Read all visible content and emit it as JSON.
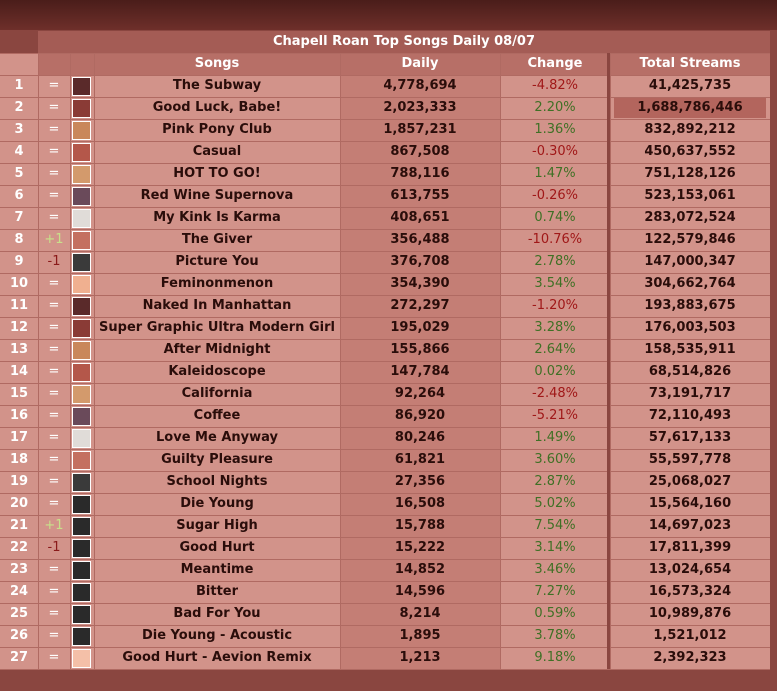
{
  "table": {
    "title": "Chapell Roan Top Songs Daily 08/07",
    "header": [
      "Songs",
      "Daily",
      "Change",
      "Total Streams"
    ],
    "rows": [
      [
        "1",
        "=",
        "The Subway",
        "4,778,694",
        "-4.82%",
        "41,425,735"
      ],
      [
        "2",
        "=",
        "Good Luck, Babe!",
        "2,023,333",
        "2.20%",
        "1,688,786,446"
      ],
      [
        "3",
        "=",
        "Pink Pony Club",
        "1,857,231",
        "1.36%",
        "832,892,212"
      ],
      [
        "4",
        "=",
        "Casual",
        "867,508",
        "-0.30%",
        "450,637,552"
      ],
      [
        "5",
        "=",
        "HOT TO GO!",
        "788,116",
        "1.47%",
        "751,128,126"
      ],
      [
        "6",
        "=",
        "Red Wine Supernova",
        "613,755",
        "-0.26%",
        "523,153,061"
      ],
      [
        "7",
        "=",
        "My Kink Is Karma",
        "408,651",
        "0.74%",
        "283,072,524"
      ],
      [
        "8",
        "+1",
        "The Giver",
        "356,488",
        "-10.76%",
        "122,579,846"
      ],
      [
        "9",
        "-1",
        "Picture You",
        "376,708",
        "2.78%",
        "147,000,347"
      ],
      [
        "10",
        "=",
        "Feminonmenon",
        "354,390",
        "3.54%",
        "304,662,764"
      ],
      [
        "11",
        "=",
        "Naked In Manhattan",
        "272,297",
        "-1.20%",
        "193,883,675"
      ],
      [
        "12",
        "=",
        "Super Graphic Ultra Modern Girl",
        "195,029",
        "3.28%",
        "176,003,503"
      ],
      [
        "13",
        "=",
        "After Midnight",
        "155,866",
        "2.64%",
        "158,535,911"
      ],
      [
        "14",
        "=",
        "Kaleidoscope",
        "147,784",
        "0.02%",
        "68,514,826"
      ],
      [
        "15",
        "=",
        "California",
        "92,264",
        "-2.48%",
        "73,191,717"
      ],
      [
        "16",
        "=",
        "Coffee",
        "86,920",
        "-5.21%",
        "72,110,493"
      ],
      [
        "17",
        "=",
        "Love Me Anyway",
        "80,246",
        "1.49%",
        "57,617,133"
      ],
      [
        "18",
        "=",
        "Guilty Pleasure",
        "61,821",
        "3.60%",
        "55,597,778"
      ],
      [
        "19",
        "=",
        "School Nights",
        "27,356",
        "2.87%",
        "25,068,027"
      ],
      [
        "20",
        "=",
        "Die Young",
        "16,508",
        "5.02%",
        "15,564,160"
      ],
      [
        "21",
        "+1",
        "Sugar High",
        "15,788",
        "7.54%",
        "14,697,023"
      ],
      [
        "22",
        "-1",
        "Good Hurt",
        "15,222",
        "3.14%",
        "17,811,399"
      ],
      [
        "23",
        "=",
        "Meantime",
        "14,852",
        "3.46%",
        "13,024,654"
      ],
      [
        "24",
        "=",
        "Bitter",
        "14,596",
        "7.27%",
        "16,573,324"
      ],
      [
        "25",
        "=",
        "Bad For You",
        "8,214",
        "0.59%",
        "10,989,876"
      ],
      [
        "26",
        "=",
        "Die Young - Acoustic",
        "1,895",
        "3.78%",
        "1,521,012"
      ],
      [
        "27",
        "=",
        "Good Hurt - Aevion Remix",
        "1,213",
        "9.18%",
        "2,392,323"
      ]
    ]
  }
}
